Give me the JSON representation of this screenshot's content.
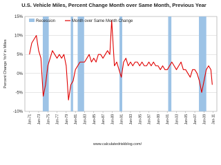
{
  "chart_data": {
    "type": "line",
    "title": "U.S. Vehicle Miles,  Percent Change Month over Same Month, Previous Year",
    "y_label": "Percent Change YoY in Miles",
    "source": "www.calculatedriskblog.com/",
    "x": [
      1971.0,
      1971.5,
      1972.0,
      1972.5,
      1973.0,
      1973.5,
      1974.0,
      1974.5,
      1975.0,
      1975.5,
      1976.0,
      1976.5,
      1977.0,
      1977.5,
      1978.0,
      1978.5,
      1979.0,
      1979.5,
      1980.0,
      1980.5,
      1981.0,
      1981.5,
      1982.0,
      1982.5,
      1983.0,
      1983.5,
      1984.0,
      1984.5,
      1985.0,
      1985.5,
      1986.0,
      1986.5,
      1987.0,
      1987.5,
      1988.0,
      1988.5,
      1988.9,
      1989.5,
      1990.0,
      1990.5,
      1991.0,
      1991.5,
      1992.0,
      1992.5,
      1993.0,
      1993.5,
      1994.0,
      1994.5,
      1995.0,
      1995.5,
      1996.0,
      1996.5,
      1997.0,
      1997.5,
      1998.0,
      1998.5,
      1999.0,
      1999.5,
      2000.0,
      2000.5,
      2001.0,
      2001.5,
      2002.0,
      2002.5,
      2003.0,
      2003.5,
      2004.0,
      2004.5,
      2005.0,
      2005.5,
      2006.0,
      2006.5,
      2007.0,
      2007.5,
      2008.0,
      2008.5,
      2009.0,
      2009.5,
      2010.0,
      2010.5,
      2010.8
    ],
    "series": [
      {
        "name": "Recession",
        "color": "#9dc3e6",
        "kind": "band",
        "ranges": [
          [
            1973.9,
            1975.2
          ],
          [
            1980.0,
            1980.5
          ],
          [
            1981.5,
            1982.9
          ],
          [
            1990.6,
            1991.2
          ],
          [
            2001.2,
            2001.9
          ],
          [
            2007.9,
            2009.5
          ]
        ]
      },
      {
        "name": "Month over Same Month Change",
        "color": "#e00000",
        "kind": "line",
        "values": [
          5,
          8,
          9,
          10,
          6,
          4,
          -6,
          -3,
          2,
          4,
          6,
          5,
          4,
          5,
          4,
          5,
          2,
          -7,
          -3,
          -2,
          1,
          2,
          3,
          3,
          3,
          4,
          5,
          3,
          4,
          3,
          5,
          5,
          4,
          5,
          6,
          5,
          14,
          2,
          3,
          1,
          -1,
          3,
          4,
          2,
          3,
          2,
          3,
          3,
          2,
          3,
          2,
          2,
          3,
          2,
          3,
          2,
          2,
          1,
          2,
          1,
          1,
          2,
          3,
          2,
          1,
          2,
          3,
          1,
          1,
          0,
          -1,
          1,
          1,
          0,
          -2,
          -5,
          -2,
          1,
          2,
          1,
          -3
        ]
      }
    ],
    "xlim": [
      1970,
      2011.8
    ],
    "xticks": [
      {
        "value": 1971,
        "label": "Jan-71"
      },
      {
        "value": 1973,
        "label": "Jan-73"
      },
      {
        "value": 1975,
        "label": "Jan-75"
      },
      {
        "value": 1977,
        "label": "Jan-77"
      },
      {
        "value": 1979,
        "label": "Jan-79"
      },
      {
        "value": 1981,
        "label": "Jan-81"
      },
      {
        "value": 1983,
        "label": "Jan-83"
      },
      {
        "value": 1985,
        "label": "Jan-85"
      },
      {
        "value": 1987,
        "label": "Jan-87"
      },
      {
        "value": 1989,
        "label": "Jan-89"
      },
      {
        "value": 1991,
        "label": "Jan-91"
      },
      {
        "value": 1993,
        "label": "Jan-93"
      },
      {
        "value": 1995,
        "label": "Jan-95"
      },
      {
        "value": 1997,
        "label": "Jan-97"
      },
      {
        "value": 1999,
        "label": "Jan-99"
      },
      {
        "value": 2001,
        "label": "Jan-01"
      },
      {
        "value": 2003,
        "label": "Jan-03"
      },
      {
        "value": 2005,
        "label": "Jan-05"
      },
      {
        "value": 2007,
        "label": "Jan-07"
      },
      {
        "value": 2009,
        "label": "Jan-09"
      },
      {
        "value": 2011,
        "label": "Jan-11"
      }
    ],
    "ylim": [
      -10,
      15
    ],
    "yticks": [
      {
        "value": -10,
        "label": "-10%"
      },
      {
        "value": -5,
        "label": "-5%"
      },
      {
        "value": 0,
        "label": "0%"
      },
      {
        "value": 5,
        "label": "5%"
      },
      {
        "value": 10,
        "label": "10%"
      },
      {
        "value": 15,
        "label": "15%"
      }
    ],
    "grid": true,
    "legend": "upper left"
  }
}
